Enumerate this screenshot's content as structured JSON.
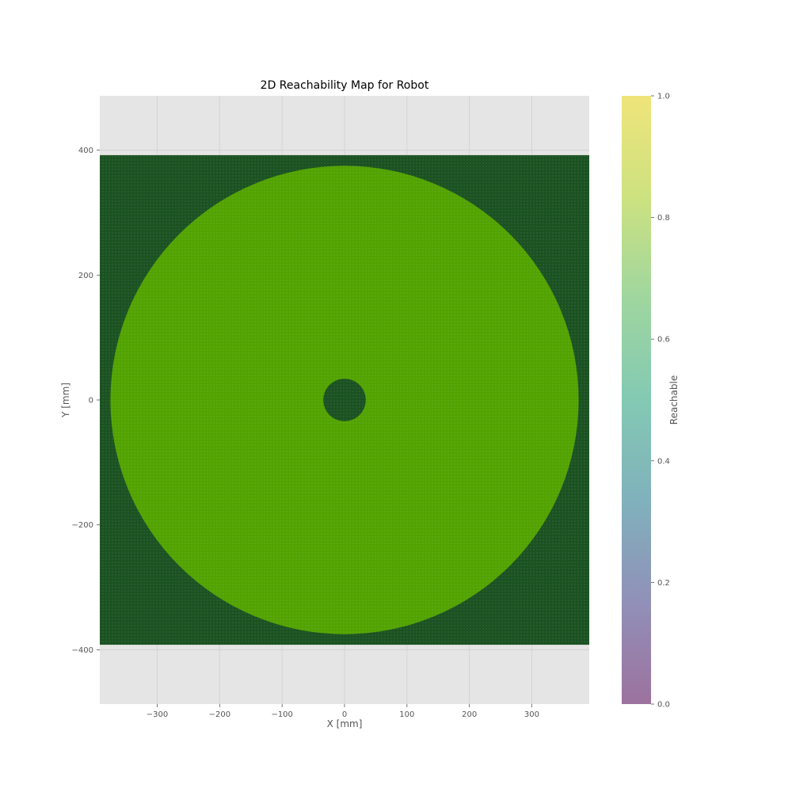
{
  "chart_data": {
    "type": "heatmap",
    "title": "2D Reachability Map for Robot",
    "xlabel": "X [mm]",
    "ylabel": "Y [mm]",
    "xlim": [
      -392,
      392
    ],
    "ylim": [
      -487,
      487
    ],
    "grid_extent": {
      "x": [
        -392,
        392
      ],
      "y": [
        -392,
        392
      ]
    },
    "x_ticks": [
      -300,
      -200,
      -100,
      0,
      100,
      200,
      300
    ],
    "x_tick_labels": [
      "−300",
      "−200",
      "−100",
      "0",
      "100",
      "200",
      "300"
    ],
    "y_ticks": [
      -400,
      -200,
      0,
      200,
      400
    ],
    "y_tick_labels": [
      "−400",
      "−200",
      "0",
      "200",
      "400"
    ],
    "reachable_region": {
      "shape": "annulus",
      "center": [
        0,
        0
      ],
      "inner_radius": 34,
      "outer_radius": 375
    },
    "grid": true,
    "colorbar": {
      "label": "Reachable",
      "range": [
        0,
        1
      ],
      "ticks": [
        0.0,
        0.2,
        0.4,
        0.6,
        0.8,
        1.0
      ],
      "tick_labels": [
        "0.0",
        "0.2",
        "0.4",
        "0.6",
        "0.8",
        "1.0"
      ]
    },
    "colors": {
      "unreachable": "#1b5222",
      "reachable": "#52a301",
      "axes_background": "#e5e5e5",
      "gridline": "#d4d4d4",
      "colorbar_stops": [
        "#9c729e",
        "#9190b8",
        "#80b1bc",
        "#83c9b3",
        "#9fd69f",
        "#cde280",
        "#efe47a"
      ]
    }
  }
}
